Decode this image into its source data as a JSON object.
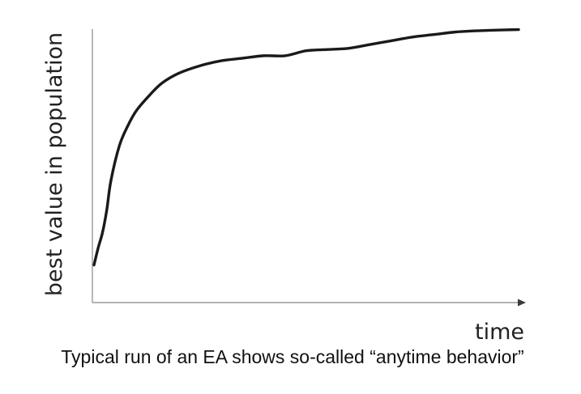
{
  "chart_data": {
    "type": "line",
    "xlabel": "time",
    "ylabel": "best value in population",
    "caption": "Typical run of an EA shows so-called “anytime behavior”",
    "x_ticks": false,
    "y_ticks": false,
    "grid": false,
    "xlim": [
      0,
      100
    ],
    "ylim": [
      0,
      100
    ],
    "line_color": "#1a1a1a",
    "axis_color": "#9a9a9a",
    "series": [
      {
        "x": [
          0,
          1,
          2,
          3,
          4,
          6,
          8,
          10,
          13,
          16,
          20,
          25,
          30,
          35,
          40,
          45,
          50,
          55,
          60,
          65,
          70,
          75,
          80,
          85,
          90,
          95,
          100
        ],
        "values": [
          5,
          12,
          18,
          27,
          39,
          53,
          61,
          67,
          73,
          78,
          82,
          85,
          87,
          88,
          89,
          89,
          91,
          91.5,
          92,
          93.5,
          95,
          96.5,
          97.5,
          98.5,
          99,
          99.3,
          99.5
        ]
      }
    ]
  }
}
